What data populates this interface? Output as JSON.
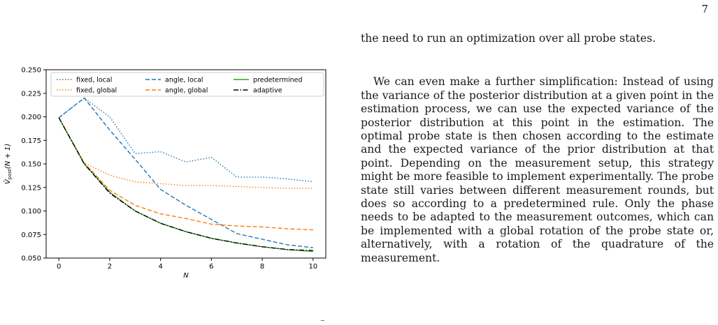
{
  "page_number": "7",
  "figure_marker": "−",
  "paragraphs": [
    "the need to run an optimization over all probe states.",
    "We can even make a further simplification: Instead of using the variance of the posterior distribution at a given point in the estimation process, we can use the expected variance of the posterior distribution at this point in the estimation. The optimal probe state is then chosen according to the estimate and the expected variance of the prior distribution at that point. Depending on the measurement setup, this strategy might be more feasible to implement experimentally. The probe state still varies between different measurement rounds, but does so according to a predetermined rule. Only the phase needs to be adapted to the measurement outcomes, which can be implemented with a global rotation of the probe state or, alternatively, with a rotation of the quadrature of the measurement."
  ],
  "chart_data": {
    "type": "line",
    "xlabel": "N",
    "ylabel": "V̂post(N + 1)",
    "ylabel_main": "V̂",
    "ylabel_sub": "post",
    "ylabel_tail": "(N + 1)",
    "xlim": [
      -0.5,
      10.5
    ],
    "ylim": [
      0.05,
      0.25
    ],
    "xticks": [
      0,
      2,
      4,
      6,
      8,
      10
    ],
    "yticks": [
      "0.050",
      "0.075",
      "0.100",
      "0.125",
      "0.150",
      "0.175",
      "0.200",
      "0.225",
      "0.250"
    ],
    "grid": false,
    "legend_position": "top",
    "x": [
      0,
      1,
      2,
      3,
      4,
      5,
      6,
      7,
      8,
      9,
      10
    ],
    "series": [
      {
        "name": "fixed, local",
        "color": "#1f77b4",
        "dash": "dotted",
        "values": [
          0.199,
          0.22,
          0.2,
          0.161,
          0.163,
          0.152,
          0.157,
          0.136,
          0.136,
          0.134,
          0.131
        ]
      },
      {
        "name": "fixed, global",
        "color": "#ff7f0e",
        "dash": "dotted",
        "values": [
          0.199,
          0.151,
          0.138,
          0.131,
          0.129,
          0.127,
          0.127,
          0.126,
          0.125,
          0.124,
          0.124
        ]
      },
      {
        "name": "angle, local",
        "color": "#1f77b4",
        "dash": "dashed",
        "values": [
          0.199,
          0.22,
          0.186,
          0.155,
          0.123,
          0.106,
          0.091,
          0.076,
          0.07,
          0.064,
          0.061
        ]
      },
      {
        "name": "angle, global",
        "color": "#ff7f0e",
        "dash": "dashed",
        "values": [
          0.199,
          0.151,
          0.122,
          0.106,
          0.097,
          0.092,
          0.086,
          0.084,
          0.083,
          0.081,
          0.08
        ]
      },
      {
        "name": "predetermined",
        "color": "#2ca02c",
        "dash": "solid",
        "values": [
          0.199,
          0.15,
          0.12,
          0.1,
          0.087,
          0.078,
          0.071,
          0.066,
          0.062,
          0.059,
          0.057
        ]
      },
      {
        "name": "adaptive",
        "color": "#000000",
        "dash": "dashdot",
        "values": [
          0.199,
          0.15,
          0.119,
          0.1,
          0.087,
          0.078,
          0.071,
          0.066,
          0.062,
          0.059,
          0.058
        ]
      }
    ]
  }
}
